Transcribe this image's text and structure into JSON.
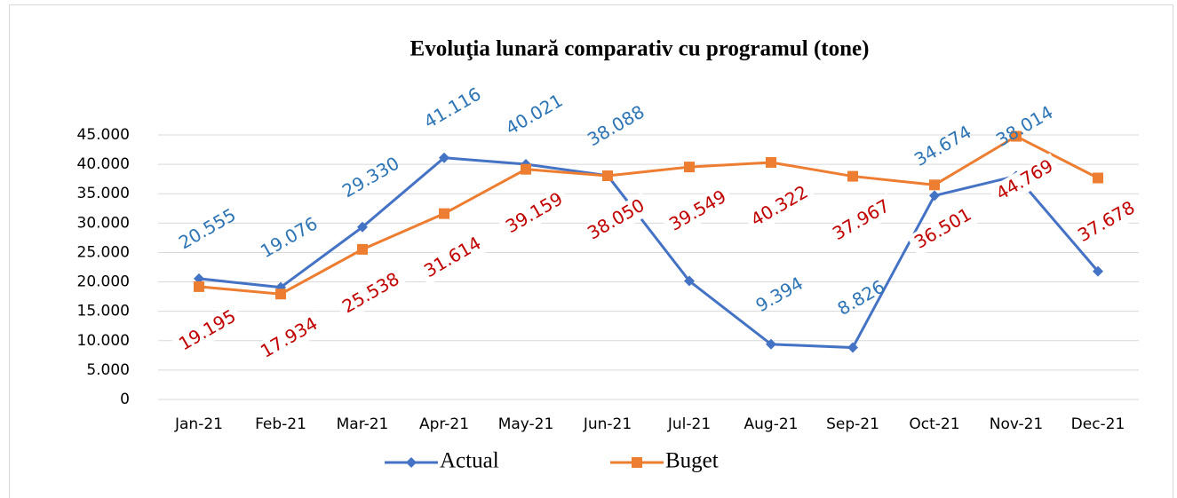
{
  "chart_data": {
    "type": "line",
    "title": "Evoluţia lunară comparativ cu programul (tone)",
    "categories": [
      "Jan-21",
      "Feb-21",
      "Mar-21",
      "Apr-21",
      "May-21",
      "Jun-21",
      "Jul-21",
      "Aug-21",
      "Sep-21",
      "Oct-21",
      "Nov-21",
      "Dec-21"
    ],
    "series": [
      {
        "name": "Actual",
        "color": "#4472c4",
        "label_color": "#2e75b6",
        "values": [
          20555,
          19076,
          29330,
          41116,
          40021,
          38088,
          20150,
          9394,
          8826,
          34674,
          38014,
          21800
        ],
        "value_labels": [
          "20.555",
          "19.076",
          "29.330",
          "41.116",
          "40.021",
          "38.088",
          null,
          "9.394",
          "8.826",
          "34.674",
          "38.014",
          null
        ]
      },
      {
        "name": "Buget",
        "color": "#ed7d31",
        "label_color": "#c00000",
        "values": [
          19195,
          17934,
          25538,
          31614,
          39159,
          38050,
          39549,
          40322,
          37967,
          36501,
          44769,
          37678
        ],
        "value_labels": [
          "19.195",
          "17.934",
          "25.538",
          "31.614",
          "39.159",
          "38.050",
          "39.549",
          "40.322",
          "37.967",
          "36.501",
          "44.769",
          "37.678"
        ]
      }
    ],
    "ylim": [
      0,
      45000
    ],
    "yticks": [
      0,
      {
        "value": 5000,
        "label": "5.000"
      },
      {
        "value": 10000,
        "label": "10.000"
      },
      {
        "value": 15000,
        "label": "15.000"
      },
      {
        "value": 20000,
        "label": "20.000"
      },
      {
        "value": 25000,
        "label": "25.000"
      },
      {
        "value": 30000,
        "label": "30.000"
      },
      {
        "value": 35000,
        "label": "35.000"
      },
      {
        "value": 40000,
        "label": "40.000"
      },
      {
        "value": 45000,
        "label": "45.000"
      }
    ],
    "grid": true
  }
}
